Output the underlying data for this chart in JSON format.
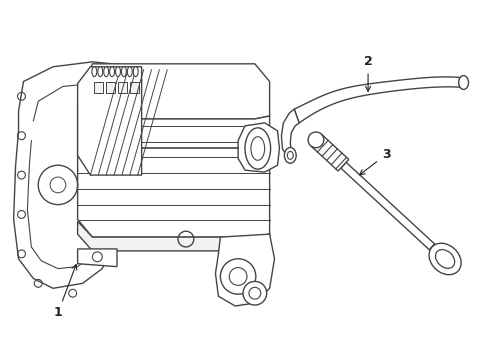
{
  "background_color": "#ffffff",
  "line_color": "#444444",
  "line_width": 1.0,
  "label_color": "#222222",
  "label_fontsize": 9,
  "figsize": [
    4.9,
    3.6
  ],
  "dpi": 100
}
